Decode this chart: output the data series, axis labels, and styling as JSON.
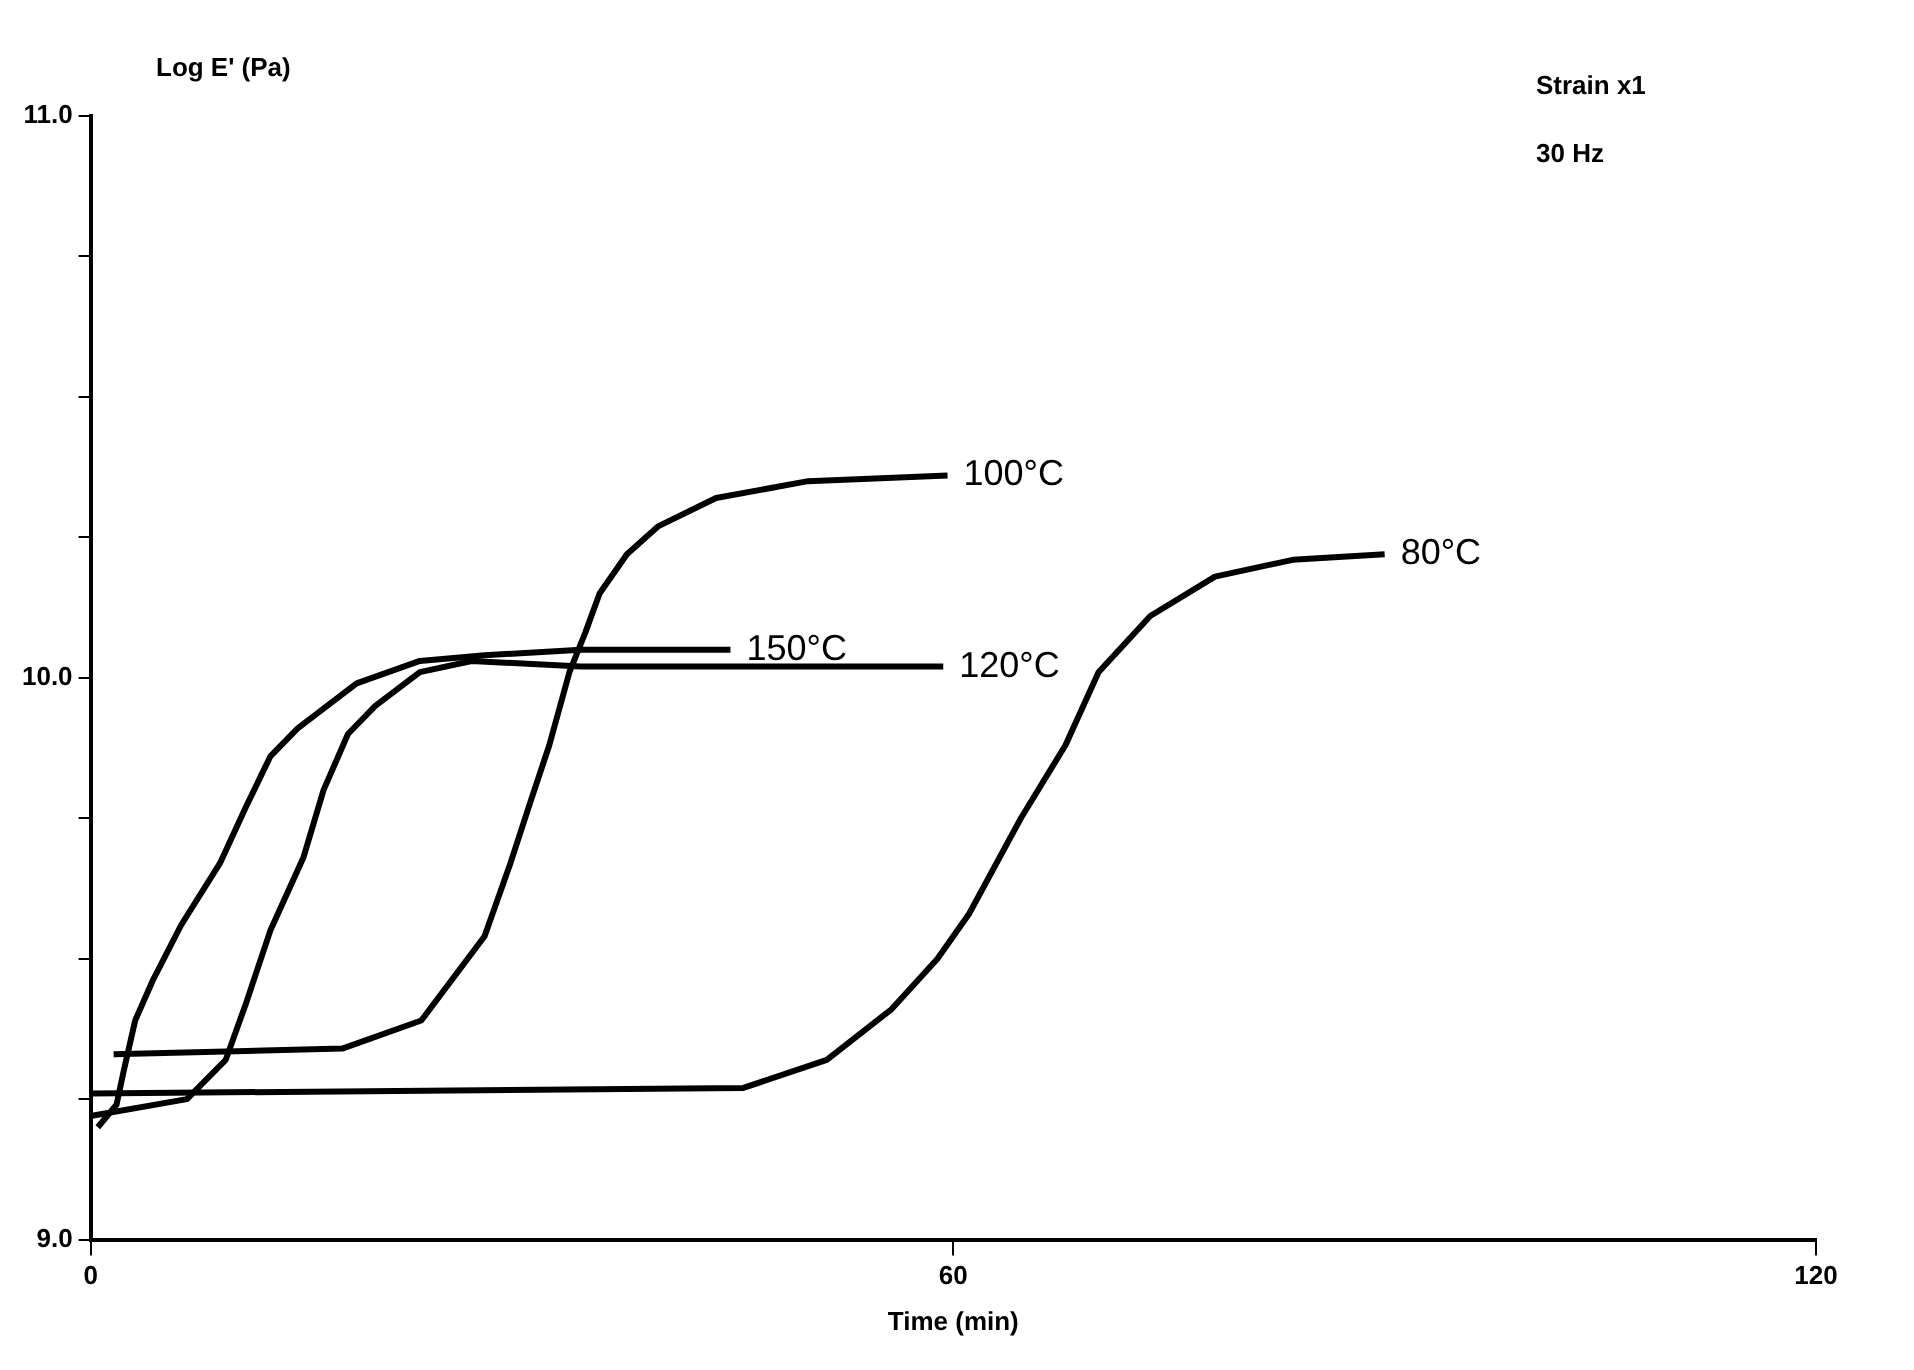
{
  "chart_data": {
    "type": "line",
    "xlabel": "Time (min)",
    "ylabel": "Log E' (Pa)",
    "annotations": [
      "Strain x1",
      "30 Hz"
    ],
    "xlim": [
      0,
      120
    ],
    "xticks": [
      0,
      60,
      120
    ],
    "ylim": [
      9.0,
      11.0
    ],
    "yticks": [
      {
        "value": 9.0,
        "label": "9.0"
      },
      {
        "value": 9.25,
        "label": null
      },
      {
        "value": 9.5,
        "label": null
      },
      {
        "value": 9.75,
        "label": null
      },
      {
        "value": 10.0,
        "label": "10.0"
      },
      {
        "value": 10.25,
        "label": null
      },
      {
        "value": 10.5,
        "label": null
      },
      {
        "value": 10.75,
        "label": null
      },
      {
        "value": 11.0,
        "label": "11.0"
      }
    ],
    "grid": false,
    "legend": false,
    "marker": "none",
    "line_style": "solid",
    "series": [
      {
        "name": "100°C",
        "color": "#000000",
        "x": [
          1.6,
          17.5,
          23,
          27.4,
          29.2,
          30.6,
          31.9,
          33.3,
          34.4,
          35.4,
          37.3,
          39.5,
          43.5,
          49.9,
          59.6
        ],
        "values": [
          9.33,
          9.34,
          9.39,
          9.54,
          9.67,
          9.78,
          9.88,
          10.01,
          10.08,
          10.15,
          10.22,
          10.27,
          10.32,
          10.35,
          10.36
        ]
      },
      {
        "name": "80°C",
        "color": "#000000",
        "x": [
          0,
          45.4,
          51.2,
          55.7,
          58.9,
          61.1,
          64.7,
          67.8,
          70.1,
          73.7,
          78.2,
          83.6,
          90.0
        ],
        "values": [
          9.26,
          9.27,
          9.32,
          9.41,
          9.5,
          9.58,
          9.75,
          9.88,
          10.01,
          10.11,
          10.18,
          10.21,
          10.22
        ]
      },
      {
        "name": "150°C",
        "color": "#000000",
        "x": [
          0.5,
          1.8,
          2.3,
          3.1,
          4.3,
          6.3,
          9.0,
          10.8,
          12.5,
          14.4,
          18.5,
          22.9,
          27.4,
          34.1,
          44.5
        ],
        "values": [
          9.2,
          9.24,
          9.3,
          9.39,
          9.46,
          9.56,
          9.67,
          9.77,
          9.86,
          9.91,
          9.99,
          10.03,
          10.04,
          10.05,
          10.05
        ]
      },
      {
        "name": "120°C",
        "color": "#000000",
        "x": [
          0,
          6.7,
          9.4,
          10.8,
          12.5,
          14.8,
          16.2,
          17.9,
          19.8,
          22.9,
          26.5,
          34.1,
          59.3
        ],
        "values": [
          9.22,
          9.25,
          9.32,
          9.42,
          9.55,
          9.68,
          9.8,
          9.9,
          9.95,
          10.01,
          10.03,
          10.02,
          10.02
        ]
      }
    ]
  }
}
